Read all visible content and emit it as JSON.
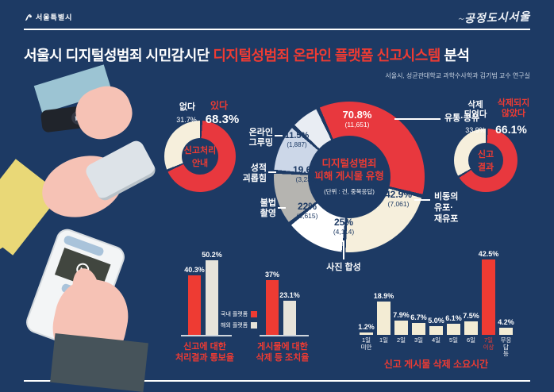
{
  "colors": {
    "background": "#1d3a64",
    "accent_red": "#ee3b33",
    "donut_red": "#e8383e",
    "cream": "#f6efdc",
    "segment_white": "#ffffff",
    "segment_gray": "#b5b4b0",
    "segment_blue": "#ccd7e8",
    "segment_light": "#e9edf3",
    "bar_cream": "#f3ecd4",
    "bar_white": "#e6e3da"
  },
  "header": {
    "city_logo": "서울특별시",
    "brand_logo": "공정도시서울"
  },
  "title": {
    "prefix": "서울시 디지털성범죄 시민감시단 ",
    "highlight": "디지털성범죄 온라인 플랫폼 신고시스템",
    "suffix": " 분석",
    "subtitle": "서울시, 성균관대학교 과학수사학과 김기범 교수 연구실"
  },
  "legend": {
    "items": [
      {
        "label": "국내 플랫폼",
        "color": "#ee3b33"
      },
      {
        "label": "해외 플랫폼",
        "color": "#e6e3da"
      }
    ]
  },
  "chart_data": [
    {
      "id": "report-guide-donut",
      "type": "pie",
      "center_title": "신고처리\n안내",
      "start": 0,
      "gap": 4,
      "slices": [
        {
          "label": "있다",
          "display": "68.3%",
          "value": 68.3,
          "color": "#e8383e"
        },
        {
          "label": "없다",
          "display": "31.7%",
          "value": 31.7,
          "color": "#f6efdc"
        }
      ]
    },
    {
      "id": "post-type-donut",
      "type": "pie",
      "center_title": "디지털성범죄\n피해 게시물 유형",
      "unit_note": "(단위 : 건, 중복응답)",
      "start": -26,
      "gap": 3,
      "slices": [
        {
          "label": "유통·공유",
          "display": "70.8%",
          "count": "(11,651)",
          "value": 70.8,
          "color": "#e8383e"
        },
        {
          "label": "비동의\n유포·\n재유포",
          "display": "42.9%",
          "count": "(7,061)",
          "value": 42.9,
          "color": "#f6efdc"
        },
        {
          "label": "사진 합성",
          "display": "25%",
          "count": "(4,114)",
          "value": 25,
          "color": "#ffffff"
        },
        {
          "label": "불법\n촬영",
          "display": "22%",
          "count": "(3,615)",
          "value": 22,
          "color": "#b5b4b0"
        },
        {
          "label": "성적\n괴롭힘",
          "display": "19.6%",
          "count": "(3,230)",
          "value": 19.6,
          "color": "#ccd7e8"
        },
        {
          "label": "온라인\n그루밍",
          "display": "11.5%",
          "count": "(1,887)",
          "value": 11.5,
          "color": "#e9edf3"
        }
      ]
    },
    {
      "id": "report-result-donut",
      "type": "pie",
      "center_title": "신고\n결과",
      "start": 0,
      "gap": 4,
      "slices": [
        {
          "label": "삭제되지\n않았다",
          "display": "66.1%",
          "value": 66.1,
          "color": "#e8383e"
        },
        {
          "label": "삭제\n되었다",
          "display": "33.9%",
          "value": 33.9,
          "color": "#f6efdc"
        }
      ]
    },
    {
      "id": "notify-rate-bars",
      "type": "bar",
      "title": "신고에 대한\n처리결과 통보율",
      "categories": [
        "국내 플랫폼",
        "해외 플랫폼"
      ],
      "bars": [
        {
          "display": "40.3%",
          "value": 40.3,
          "color": "#ee3b33"
        },
        {
          "display": "50.2%",
          "value": 50.2,
          "color": "#e6e3da"
        }
      ]
    },
    {
      "id": "action-rate-bars",
      "type": "bar",
      "title": "게시물에 대한\n삭제 등 조치율",
      "categories": [
        "국내 플랫폼",
        "해외 플랫폼"
      ],
      "bars": [
        {
          "display": "37%",
          "value": 37,
          "color": "#ee3b33"
        },
        {
          "display": "23.1%",
          "value": 23.1,
          "color": "#e6e3da"
        }
      ]
    },
    {
      "id": "deletion-time-bars",
      "type": "bar",
      "title": "신고 게시물 삭제 소요시간",
      "has_categories": true,
      "bars": [
        {
          "category": "1일\n미만",
          "display": "1.2%",
          "value": 1.2,
          "color": "#f3ecd4",
          "category_color": "#ffffff"
        },
        {
          "category": "1일",
          "display": "18.9%",
          "value": 18.9,
          "color": "#f3ecd4",
          "category_color": "#ffffff"
        },
        {
          "category": "2일",
          "display": "7.9%",
          "value": 7.9,
          "color": "#f3ecd4",
          "category_color": "#ffffff"
        },
        {
          "category": "3일",
          "display": "6.7%",
          "value": 6.7,
          "color": "#f3ecd4",
          "category_color": "#ffffff"
        },
        {
          "category": "4일",
          "display": "5.0%",
          "value": 5.0,
          "color": "#f3ecd4",
          "category_color": "#ffffff"
        },
        {
          "category": "5일",
          "display": "6.1%",
          "value": 6.1,
          "color": "#f3ecd4",
          "category_color": "#ffffff"
        },
        {
          "category": "6일",
          "display": "7.5%",
          "value": 7.5,
          "color": "#f3ecd4",
          "category_color": "#ffffff"
        },
        {
          "category": "7일\n이상",
          "display": "42.5%",
          "value": 42.5,
          "color": "#ee3b33",
          "category_color": "#ee3b33"
        },
        {
          "category": "무응답\n등",
          "display": "4.2%",
          "value": 4.2,
          "color": "#f3ecd4",
          "category_color": "#ffffff"
        }
      ]
    }
  ]
}
